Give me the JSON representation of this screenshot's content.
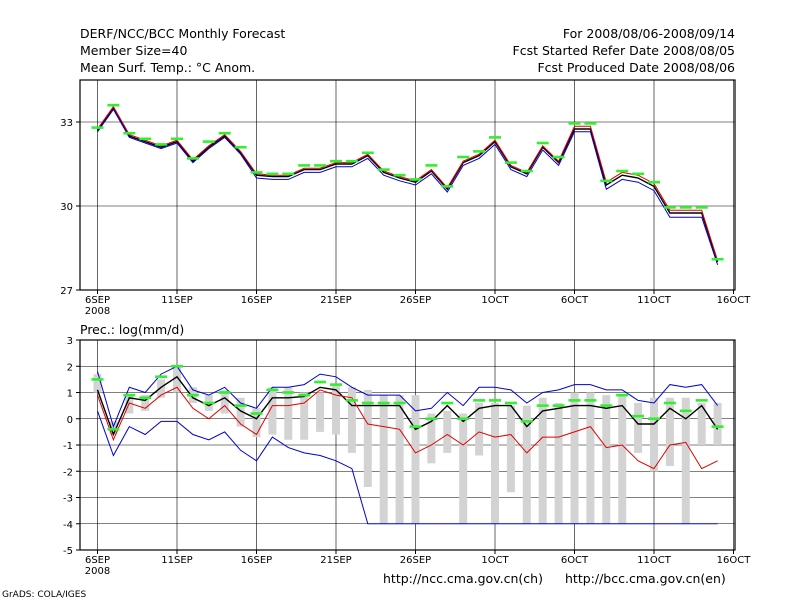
{
  "header": {
    "title": "DERF/NCC/BCC Monthly Forecast",
    "member": "Member Size=40",
    "variable_top": "Mean Surf. Temp.: °C Anom.",
    "period": "For 2008/08/06-2008/09/14",
    "refer_date": "Fcst Started Refer Date 2008/08/05",
    "produced_date": "Fcst Produced Date 2008/08/06"
  },
  "footer": {
    "credit": "GrADS: COLA/IGES",
    "link_ncc": "http://ncc.cma.gov.cn(ch)",
    "link_bcc": "http://bcc.cma.gov.cn(en)"
  },
  "colors": {
    "mean": "#000000",
    "red": "#e00000",
    "blue": "#0000d0",
    "green": "#30f030",
    "bar": "#d3d3d3"
  },
  "chart_data": [
    {
      "type": "line",
      "title": "Mean Surf. Temp.: °C Anom.",
      "xlabel": "",
      "ylabel": "",
      "ylim": [
        27,
        34.5
      ],
      "yticks": [
        27,
        30,
        33
      ],
      "xlim": [
        0,
        40
      ],
      "xticks": [
        {
          "x": 0,
          "label": "6SEP",
          "sub": "2008"
        },
        {
          "x": 5,
          "label": "11SEP"
        },
        {
          "x": 10,
          "label": "16SEP"
        },
        {
          "x": 15,
          "label": "21SEP"
        },
        {
          "x": 20,
          "label": "26SEP"
        },
        {
          "x": 25,
          "label": "1OCT"
        },
        {
          "x": 30,
          "label": "6OCT"
        },
        {
          "x": 35,
          "label": "11OCT"
        },
        {
          "x": 40,
          "label": "16OCT"
        }
      ],
      "x": [
        0,
        1,
        2,
        3,
        4,
        5,
        6,
        7,
        8,
        9,
        10,
        11,
        12,
        13,
        14,
        15,
        16,
        17,
        18,
        19,
        20,
        21,
        22,
        23,
        24,
        25,
        26,
        27,
        28,
        29,
        30,
        31,
        32,
        33,
        34,
        35,
        36,
        37,
        38,
        39
      ],
      "series": [
        {
          "name": "mean",
          "color": "#000000",
          "values": [
            32.7,
            33.5,
            32.5,
            32.3,
            32.1,
            32.3,
            31.6,
            32.1,
            32.5,
            31.9,
            31.1,
            31.05,
            31.05,
            31.3,
            31.3,
            31.5,
            31.5,
            31.8,
            31.2,
            31.0,
            30.85,
            31.25,
            30.6,
            31.55,
            31.8,
            32.3,
            31.4,
            31.15,
            32.1,
            31.55,
            32.75,
            32.75,
            30.75,
            31.1,
            31.0,
            30.7,
            29.75,
            29.75,
            29.75,
            28.0
          ]
        },
        {
          "name": "upper",
          "color": "#e00000",
          "values": [
            32.75,
            33.55,
            32.55,
            32.35,
            32.15,
            32.35,
            31.65,
            32.15,
            32.55,
            31.95,
            31.15,
            31.1,
            31.1,
            31.35,
            31.35,
            31.55,
            31.55,
            31.85,
            31.25,
            31.05,
            30.9,
            31.3,
            30.65,
            31.6,
            31.85,
            32.35,
            31.45,
            31.2,
            32.15,
            31.6,
            32.85,
            32.85,
            30.85,
            31.2,
            31.1,
            30.8,
            29.85,
            29.85,
            29.85,
            28.05
          ]
        },
        {
          "name": "lower",
          "color": "#0000d0",
          "values": [
            32.65,
            33.45,
            32.45,
            32.25,
            32.05,
            32.25,
            31.55,
            32.05,
            32.45,
            31.85,
            31.0,
            30.95,
            30.95,
            31.2,
            31.2,
            31.4,
            31.4,
            31.7,
            31.1,
            30.9,
            30.75,
            31.15,
            30.5,
            31.45,
            31.7,
            32.2,
            31.3,
            31.05,
            32.0,
            31.45,
            32.65,
            32.65,
            30.6,
            30.95,
            30.85,
            30.55,
            29.6,
            29.6,
            29.6,
            27.9
          ]
        },
        {
          "name": "green-markers",
          "color": "#30f030",
          "marker": "dash",
          "values": [
            32.8,
            33.6,
            32.6,
            32.4,
            32.2,
            32.4,
            31.7,
            32.3,
            32.6,
            32.1,
            31.2,
            31.15,
            31.15,
            31.45,
            31.45,
            31.6,
            31.6,
            31.9,
            31.3,
            31.1,
            30.95,
            31.45,
            30.7,
            31.75,
            31.95,
            32.45,
            31.55,
            31.25,
            32.25,
            31.75,
            32.95,
            32.95,
            30.9,
            31.25,
            31.15,
            30.85,
            29.95,
            29.95,
            29.95,
            28.1
          ]
        }
      ]
    },
    {
      "type": "line",
      "title": "Prec.: log(mm/d)",
      "xlabel": "",
      "ylabel": "",
      "ylim": [
        -5,
        3
      ],
      "yticks": [
        -5,
        -4,
        -3,
        -2,
        -1,
        0,
        1,
        2,
        3
      ],
      "xlim": [
        0,
        40
      ],
      "xticks": [
        {
          "x": 0,
          "label": "6SEP",
          "sub": "2008"
        },
        {
          "x": 5,
          "label": "11SEP"
        },
        {
          "x": 10,
          "label": "16SEP"
        },
        {
          "x": 15,
          "label": "21SEP"
        },
        {
          "x": 20,
          "label": "26SEP"
        },
        {
          "x": 25,
          "label": "1OCT"
        },
        {
          "x": 30,
          "label": "6OCT"
        },
        {
          "x": 35,
          "label": "11OCT"
        },
        {
          "x": 40,
          "label": "16OCT"
        }
      ],
      "x": [
        0,
        1,
        2,
        3,
        4,
        5,
        6,
        7,
        8,
        9,
        10,
        11,
        12,
        13,
        14,
        15,
        16,
        17,
        18,
        19,
        20,
        21,
        22,
        23,
        24,
        25,
        26,
        27,
        28,
        29,
        30,
        31,
        32,
        33,
        34,
        35,
        36,
        37,
        38,
        39
      ],
      "bars": {
        "name": "member-spread",
        "color": "#d3d3d3",
        "low": [
          1.0,
          -0.6,
          0.2,
          0.3,
          0.8,
          1.0,
          0.6,
          0.3,
          0.2,
          -0.3,
          -0.7,
          -0.6,
          -0.8,
          -0.8,
          -0.5,
          -0.6,
          -1.3,
          -2.6,
          -4.0,
          -4.0,
          -4.0,
          -1.7,
          -1.3,
          -4.0,
          -1.4,
          -4.0,
          -2.8,
          -4.0,
          -4.0,
          -4.0,
          -4.0,
          -4.0,
          -4.0,
          -4.0,
          -1.3,
          -2.0,
          -1.8,
          -4.0,
          -1.0,
          -1.0
        ],
        "high": [
          1.7,
          -0.1,
          0.9,
          0.9,
          1.5,
          2.0,
          1.2,
          0.9,
          1.1,
          0.8,
          0.4,
          1.2,
          1.2,
          1.0,
          1.0,
          1.3,
          1.2,
          1.1,
          0.9,
          0.9,
          0.9,
          0.2,
          0.3,
          0.2,
          0.6,
          0.6,
          0.5,
          0.5,
          0.8,
          0.6,
          1.0,
          1.0,
          0.9,
          0.9,
          0.6,
          0.8,
          0.8,
          0.8,
          0.6,
          0.6
        ]
      },
      "series": [
        {
          "name": "mean",
          "color": "#000000",
          "values": [
            1.1,
            -0.6,
            0.8,
            0.7,
            1.2,
            1.6,
            0.8,
            0.5,
            0.8,
            0.3,
            0.0,
            0.8,
            0.8,
            0.85,
            1.2,
            1.1,
            0.5,
            0.5,
            0.5,
            0.5,
            -0.4,
            -0.1,
            0.5,
            -0.1,
            0.4,
            0.5,
            0.5,
            -0.3,
            0.3,
            0.4,
            0.5,
            0.5,
            0.4,
            0.5,
            -0.2,
            -0.2,
            0.4,
            0.0,
            0.5,
            -0.4
          ]
        },
        {
          "name": "red",
          "color": "#e00000",
          "values": [
            0.9,
            -0.8,
            0.6,
            0.4,
            0.9,
            1.2,
            0.4,
            0.0,
            0.5,
            -0.2,
            -0.6,
            0.5,
            0.5,
            0.6,
            1.1,
            0.9,
            0.8,
            -0.2,
            -0.3,
            -0.4,
            -1.3,
            -1.0,
            -0.6,
            -1.0,
            -0.5,
            -0.7,
            -0.6,
            -1.3,
            -0.7,
            -0.7,
            -0.5,
            -0.3,
            -1.1,
            -1.0,
            -1.6,
            -1.9,
            -1.0,
            -0.9,
            -1.9,
            -1.6
          ]
        },
        {
          "name": "blue-upper",
          "color": "#0000d0",
          "values": [
            1.8,
            -0.3,
            1.2,
            1.0,
            1.7,
            2.0,
            1.1,
            0.9,
            1.2,
            0.6,
            0.4,
            1.2,
            1.2,
            1.3,
            1.7,
            1.6,
            1.2,
            0.9,
            0.9,
            0.9,
            0.3,
            0.4,
            1.0,
            0.5,
            1.2,
            1.2,
            1.1,
            0.6,
            1.0,
            1.1,
            1.3,
            1.3,
            1.1,
            1.1,
            0.7,
            0.6,
            1.3,
            1.2,
            1.3,
            0.5
          ]
        },
        {
          "name": "blue-lower",
          "color": "#0000d0",
          "values": [
            0.3,
            -1.4,
            -0.3,
            -0.6,
            -0.1,
            -0.1,
            -0.6,
            -0.8,
            -0.5,
            -1.2,
            -1.6,
            -0.7,
            -1.1,
            -1.3,
            -1.4,
            -1.6,
            -1.9,
            -4.0,
            -4.0,
            -4.0,
            -4.0,
            -4.0,
            -4.0,
            -4.0,
            -4.0,
            -4.0,
            -4.0,
            -4.0,
            -4.0,
            -4.0,
            -4.0,
            -4.0,
            -4.0,
            -4.0,
            -4.0,
            -4.0,
            -4.0,
            -4.0,
            -4.0,
            -4.0
          ]
        },
        {
          "name": "green-markers",
          "color": "#30f030",
          "marker": "dash",
          "values": [
            1.5,
            -0.4,
            0.9,
            0.8,
            1.6,
            2.0,
            0.9,
            0.6,
            1.0,
            0.5,
            0.2,
            1.1,
            1.0,
            0.9,
            1.4,
            1.3,
            0.7,
            0.6,
            0.6,
            0.6,
            -0.3,
            0.0,
            0.6,
            0.0,
            0.7,
            0.7,
            0.6,
            -0.1,
            0.5,
            0.5,
            0.7,
            0.7,
            0.5,
            0.9,
            0.1,
            0.0,
            0.6,
            0.3,
            0.7,
            -0.3
          ]
        }
      ]
    }
  ]
}
